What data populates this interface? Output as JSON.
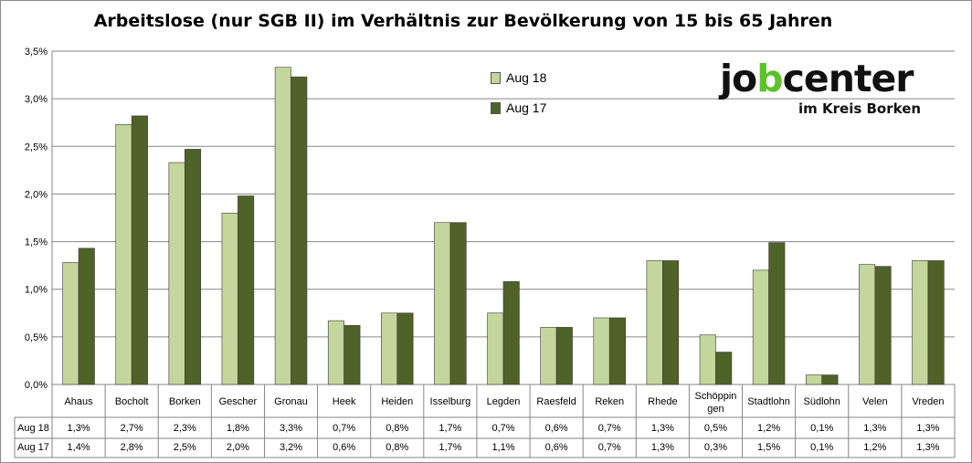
{
  "chart_data": {
    "type": "bar",
    "title": "Arbeitslose (nur SGB II) im Verhältnis zur Bevölkerung von 15 bis 65 Jahren",
    "categories": [
      "Ahaus",
      "Bocholt",
      "Borken",
      "Gescher",
      "Gronau",
      "Heek",
      "Heiden",
      "Isselburg",
      "Legden",
      "Raesfeld",
      "Reken",
      "Rhede",
      "Schöppin gen",
      "Stadtlohn",
      "Südlohn",
      "Velen",
      "Vreden"
    ],
    "series": [
      {
        "name": "Aug 18",
        "color": "#c3d69b",
        "values": [
          1.28,
          2.73,
          2.33,
          1.8,
          3.33,
          0.67,
          0.75,
          1.7,
          0.75,
          0.6,
          0.7,
          1.3,
          0.52,
          1.2,
          0.1,
          1.26,
          1.3
        ],
        "labels": [
          "1,3%",
          "2,7%",
          "2,3%",
          "1,8%",
          "3,3%",
          "0,7%",
          "0,8%",
          "1,7%",
          "0,7%",
          "0,6%",
          "0,7%",
          "1,3%",
          "0,5%",
          "1,2%",
          "0,1%",
          "1,3%",
          "1,3%"
        ]
      },
      {
        "name": "Aug 17",
        "color": "#4f6228",
        "values": [
          1.43,
          2.82,
          2.47,
          1.98,
          3.23,
          0.62,
          0.75,
          1.7,
          1.08,
          0.6,
          0.7,
          1.3,
          0.34,
          1.49,
          0.1,
          1.24,
          1.3
        ],
        "labels": [
          "1,4%",
          "2,8%",
          "2,5%",
          "2,0%",
          "3,2%",
          "0,6%",
          "0,8%",
          "1,7%",
          "1,1%",
          "0,6%",
          "0,7%",
          "1,3%",
          "0,3%",
          "1,5%",
          "0,1%",
          "1,2%",
          "1,3%"
        ]
      }
    ],
    "ylim": [
      0,
      3.5
    ],
    "yticks": [
      0,
      0.5,
      1.0,
      1.5,
      2.0,
      2.5,
      3.0,
      3.5
    ],
    "ytick_labels": [
      "0,0%",
      "0,5%",
      "1,0%",
      "1,5%",
      "2,0%",
      "2,5%",
      "3,0%",
      "3,5%"
    ],
    "grid": true,
    "legend_position": "top-center",
    "data_table": true
  },
  "logo": {
    "word_a": "jo",
    "word_b": "b",
    "word_c": "center",
    "subtitle": "im Kreis Borken",
    "brand_green": "#5cc12b"
  }
}
